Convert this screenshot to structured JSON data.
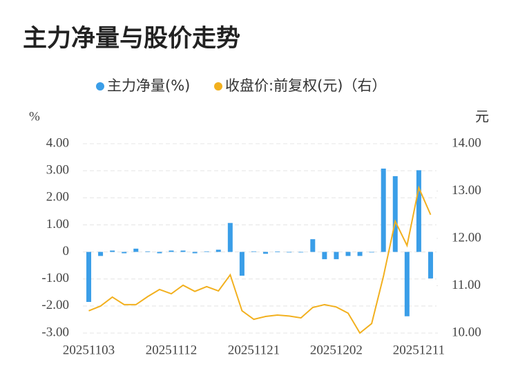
{
  "chart_data": {
    "type": "bar-line",
    "title": "主力净量与股价走势",
    "y_label": "%",
    "y2_label": "元",
    "categories": [
      "20251103",
      null,
      null,
      null,
      null,
      null,
      null,
      "20251112",
      null,
      null,
      null,
      null,
      null,
      null,
      "20251121",
      null,
      null,
      null,
      null,
      null,
      null,
      "20251202",
      null,
      null,
      null,
      null,
      null,
      null,
      "20251211",
      null
    ],
    "series": [
      {
        "name": "主力净量(%)",
        "type": "bar",
        "color": "#3a9ee8",
        "values": [
          -1.85,
          -0.15,
          0.05,
          -0.05,
          0.12,
          0.02,
          -0.05,
          0.05,
          0.05,
          -0.05,
          0.02,
          0.08,
          1.07,
          -0.88,
          0.02,
          -0.07,
          0.01,
          -0.01,
          0,
          0.47,
          -0.27,
          -0.27,
          -0.15,
          -0.15,
          0,
          3.08,
          2.8,
          -2.38,
          3.02,
          -0.98
        ]
      },
      {
        "name": "收盘价:前复权(元)（右）",
        "type": "line",
        "axis": "y2",
        "color": "#f2b01e",
        "values": [
          10.47,
          10.57,
          10.76,
          10.6,
          10.6,
          10.77,
          10.92,
          10.83,
          11.01,
          10.88,
          10.98,
          10.89,
          11.23,
          10.47,
          10.29,
          10.35,
          10.38,
          10.36,
          10.32,
          10.54,
          10.6,
          10.55,
          10.42,
          10.0,
          10.2,
          11.2,
          12.36,
          11.85,
          13.07,
          12.5
        ]
      }
    ],
    "ylim": [
      -3,
      4
    ],
    "yticks": [
      {
        "value": 4,
        "label": "4.00"
      },
      {
        "value": 3,
        "label": "3.00"
      },
      {
        "value": 2,
        "label": "2.00"
      },
      {
        "value": 1,
        "label": "1.00"
      },
      0,
      {
        "value": -1,
        "label": "-1.00"
      },
      {
        "value": -2,
        "label": "-2.00"
      },
      {
        "value": -3,
        "label": "-3.00"
      }
    ],
    "y2lim": [
      10,
      14
    ],
    "y2ticks": [
      {
        "value": 14,
        "label": "14.00"
      },
      {
        "value": 13,
        "label": "13.00"
      },
      {
        "value": 12,
        "label": "12.00"
      },
      {
        "value": 11,
        "label": "11.00"
      },
      {
        "value": 10,
        "label": "10.00"
      }
    ],
    "grid": true
  }
}
